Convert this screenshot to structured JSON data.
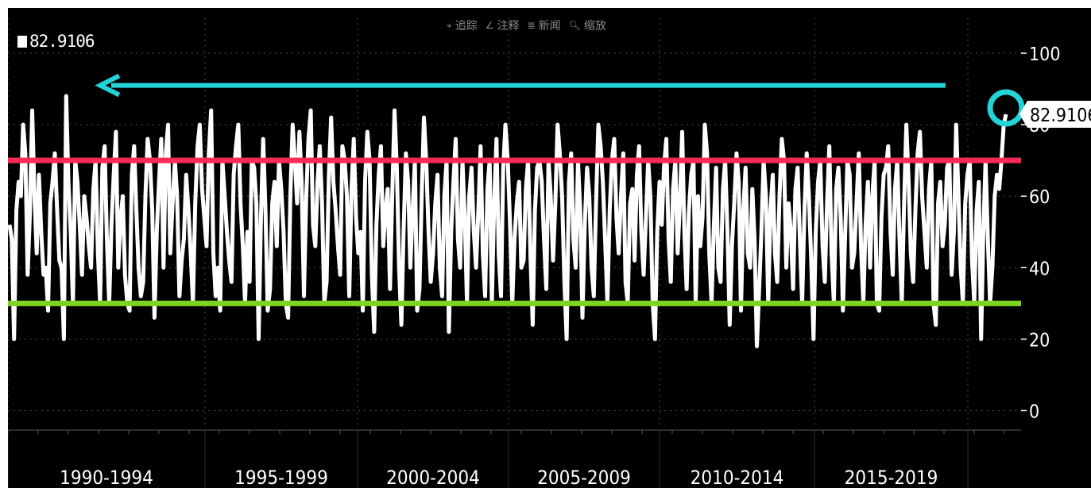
{
  "toolbar": {
    "items": [
      {
        "icon": "crosshair-icon",
        "glyph": "⌖",
        "label": "追踪"
      },
      {
        "icon": "annotate-icon",
        "glyph": "∠",
        "label": "注释"
      },
      {
        "icon": "news-icon",
        "glyph": "≣",
        "label": "新闻"
      },
      {
        "icon": "zoom-icon",
        "glyph": "🔍︎",
        "label": "缩放"
      }
    ]
  },
  "legend": {
    "value": "82.9106"
  },
  "colors": {
    "background": "#000000",
    "series": "#ffffff",
    "upper_threshold": "#ff2a55",
    "lower_threshold": "#7fd321",
    "arrow": "#22d3d8",
    "grid": "#4a4a4a",
    "axis_text": "#ffffff"
  },
  "chart_data": {
    "type": "line",
    "x_range": [
      "1988",
      "2021"
    ],
    "ylim": [
      -5,
      110
    ],
    "y_ticks": [
      0,
      20,
      40,
      60,
      80,
      100
    ],
    "x_tick_labels": [
      "1990-1994",
      "1995-1999",
      "2000-2004",
      "2005-2009",
      "2010-2014",
      "2015-2019"
    ],
    "last_value": 82.9106,
    "last_value_label": "82.9106",
    "reference_lines": [
      {
        "name": "upper",
        "value": 70,
        "color": "#ff2a55"
      },
      {
        "name": "lower",
        "value": 30,
        "color": "#7fd321"
      }
    ],
    "series": [
      {
        "color": "#ffffff",
        "values": [
          52,
          48,
          20,
          56,
          64,
          60,
          80,
          72,
          38,
          55,
          84,
          60,
          44,
          66,
          50,
          38,
          40,
          28,
          58,
          64,
          72,
          56,
          42,
          40,
          20,
          88,
          64,
          50,
          30,
          70,
          64,
          52,
          38,
          60,
          54,
          46,
          40,
          62,
          70,
          44,
          30,
          68,
          74,
          48,
          30,
          52,
          66,
          78,
          40,
          54,
          60,
          38,
          30,
          28,
          66,
          74,
          56,
          40,
          32,
          36,
          60,
          76,
          70,
          56,
          26,
          50,
          64,
          76,
          40,
          72,
          80,
          44,
          58,
          70,
          60,
          32,
          42,
          48,
          66,
          56,
          44,
          30,
          58,
          74,
          80,
          62,
          54,
          46,
          72,
          84,
          44,
          32,
          40,
          28,
          70,
          60,
          50,
          42,
          36,
          66,
          74,
          80,
          58,
          46,
          30,
          50,
          36,
          70,
          68,
          58,
          20,
          54,
          76,
          56,
          28,
          34,
          58,
          64,
          46,
          70,
          62,
          50,
          30,
          26,
          60,
          80,
          70,
          58,
          78,
          64,
          32,
          60,
          76,
          84,
          52,
          46,
          64,
          74,
          58,
          30,
          36,
          66,
          82,
          64,
          56,
          46,
          38,
          74,
          70,
          60,
          32,
          62,
          76,
          54,
          44,
          50,
          28,
          64,
          78,
          70,
          38,
          22,
          52,
          66,
          74,
          46,
          56,
          62,
          34,
          60,
          84,
          68,
          40,
          24,
          50,
          72,
          64,
          40,
          56,
          70,
          28,
          34,
          60,
          82,
          70,
          50,
          36,
          44,
          58,
          66,
          40,
          32,
          60,
          70,
          22,
          50,
          64,
          76,
          48,
          40,
          70,
          54,
          30,
          60,
          68,
          50,
          40,
          56,
          74,
          44,
          32,
          62,
          70,
          30,
          58,
          76,
          44,
          32,
          68,
          80,
          70,
          52,
          30,
          48,
          58,
          64,
          40,
          42,
          62,
          70,
          44,
          24,
          56,
          68,
          70,
          64,
          48,
          34,
          70,
          60,
          42,
          58,
          80,
          72,
          60,
          36,
          20,
          64,
          72,
          48,
          40,
          70,
          56,
          26,
          52,
          68,
          60,
          40,
          32,
          58,
          80,
          74,
          64,
          48,
          30,
          56,
          70,
          76,
          54,
          44,
          60,
          72,
          36,
          30,
          58,
          62,
          42,
          66,
          74,
          50,
          38,
          54,
          70,
          60,
          30,
          20,
          50,
          64,
          52,
          68,
          76,
          48,
          36,
          62,
          70,
          44,
          58,
          78,
          50,
          34,
          56,
          66,
          70,
          30,
          60,
          46,
          54,
          80,
          72,
          44,
          30,
          52,
          68,
          40,
          36,
          62,
          70,
          50,
          24,
          46,
          58,
          72,
          64,
          28,
          56,
          68,
          44,
          40,
          62,
          48,
          18,
          34,
          50,
          70,
          60,
          30,
          56,
          66,
          44,
          36,
          60,
          76,
          70,
          40,
          58,
          50,
          34,
          62,
          68,
          48,
          30,
          56,
          72,
          60,
          42,
          20,
          50,
          64,
          70,
          46,
          36,
          58,
          74,
          44,
          30,
          62,
          68,
          54,
          28,
          50,
          70,
          66,
          40,
          44,
          58,
          72,
          46,
          30,
          52,
          64,
          40,
          60,
          70,
          30,
          28,
          54,
          66,
          68,
          74,
          50,
          38,
          62,
          70,
          48,
          30,
          58,
          80,
          64,
          44,
          36,
          56,
          72,
          78,
          60,
          50,
          40,
          62,
          70,
          30,
          24,
          58,
          64,
          46,
          52,
          68,
          70,
          38,
          50,
          80,
          60,
          40,
          30,
          58,
          66,
          70,
          42,
          30,
          56,
          64,
          20,
          50,
          70,
          48,
          30,
          40,
          60,
          66,
          62,
          70,
          80,
          82.9106
        ]
      }
    ]
  }
}
